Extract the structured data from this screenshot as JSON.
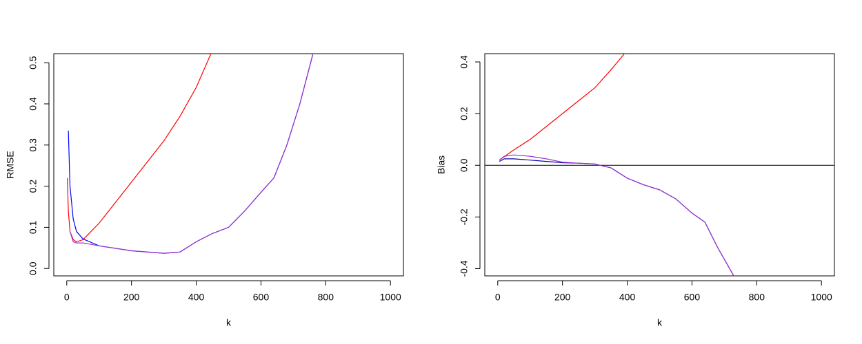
{
  "chart_data": [
    {
      "type": "line",
      "x_label": "k",
      "y_label": "RMSE",
      "xlim": [
        -40,
        1040
      ],
      "ylim": [
        -0.018,
        0.522
      ],
      "xticks": [
        0,
        200,
        400,
        600,
        800,
        1000
      ],
      "yticks": [
        {
          "value": 0,
          "label": "0.0"
        },
        {
          "value": 0.1,
          "label": "0.1"
        },
        {
          "value": 0.2,
          "label": "0.2"
        },
        {
          "value": 0.3,
          "label": "0.3"
        },
        {
          "value": 0.4,
          "label": "0.4"
        },
        {
          "value": 0.5,
          "label": "0.5"
        }
      ],
      "series": [
        {
          "color": "#ff0000",
          "x": [
            2,
            5,
            10,
            20,
            30,
            50,
            100,
            150,
            200,
            250,
            300,
            350,
            400,
            450
          ],
          "values": [
            0.22,
            0.14,
            0.09,
            0.07,
            0.065,
            0.07,
            0.11,
            0.16,
            0.21,
            0.26,
            0.31,
            0.37,
            0.44,
            0.53
          ]
        },
        {
          "color": "#0000ff",
          "x": [
            5,
            10,
            20,
            30,
            50,
            100,
            200,
            300,
            350,
            400,
            450,
            500,
            550,
            600,
            640,
            680,
            720,
            760
          ],
          "values": [
            0.335,
            0.2,
            0.12,
            0.09,
            0.072,
            0.055,
            0.043,
            0.037,
            0.04,
            0.065,
            0.085,
            0.1,
            0.14,
            0.185,
            0.22,
            0.3,
            0.4,
            0.52
          ]
        },
        {
          "color": "#9933cc",
          "x": [
            10,
            20,
            30,
            50,
            100,
            200,
            300,
            350,
            400,
            450,
            500,
            550,
            600,
            640,
            680,
            720,
            760
          ],
          "values": [
            0.09,
            0.065,
            0.062,
            0.062,
            0.055,
            0.043,
            0.037,
            0.04,
            0.065,
            0.085,
            0.1,
            0.14,
            0.185,
            0.22,
            0.3,
            0.4,
            0.52
          ]
        }
      ]
    },
    {
      "type": "line",
      "x_label": "k",
      "y_label": "Bias",
      "xlim": [
        -40,
        1040
      ],
      "ylim": [
        -0.428,
        0.432
      ],
      "xticks": [
        0,
        200,
        400,
        600,
        800,
        1000
      ],
      "yticks": [
        -0.4,
        -0.2,
        {
          "value": 0,
          "label": "0.0"
        },
        0.2,
        0.4
      ],
      "reference_line": 0,
      "series": [
        {
          "color": "#ff0000",
          "x": [
            5,
            50,
            100,
            150,
            200,
            250,
            300,
            350,
            390
          ],
          "values": [
            0.02,
            0.06,
            0.1,
            0.15,
            0.2,
            0.25,
            0.3,
            0.37,
            0.43
          ]
        },
        {
          "color": "#0000aa",
          "x": [
            5,
            20,
            50,
            100,
            150,
            200,
            250,
            300,
            350,
            400,
            450,
            500,
            550,
            600,
            640,
            680,
            730
          ],
          "values": [
            0.015,
            0.025,
            0.025,
            0.02,
            0.015,
            0.01,
            0.008,
            0.005,
            -0.01,
            -0.05,
            -0.075,
            -0.095,
            -0.13,
            -0.185,
            -0.22,
            -0.32,
            -0.43
          ]
        },
        {
          "color": "#9933cc",
          "x": [
            5,
            20,
            50,
            100,
            150,
            200,
            250,
            300,
            350,
            400,
            450,
            500,
            550,
            600,
            640,
            680,
            730
          ],
          "values": [
            0.02,
            0.035,
            0.04,
            0.035,
            0.025,
            0.012,
            0.008,
            0.005,
            -0.01,
            -0.05,
            -0.075,
            -0.095,
            -0.13,
            -0.185,
            -0.22,
            -0.32,
            -0.43
          ]
        }
      ]
    }
  ]
}
